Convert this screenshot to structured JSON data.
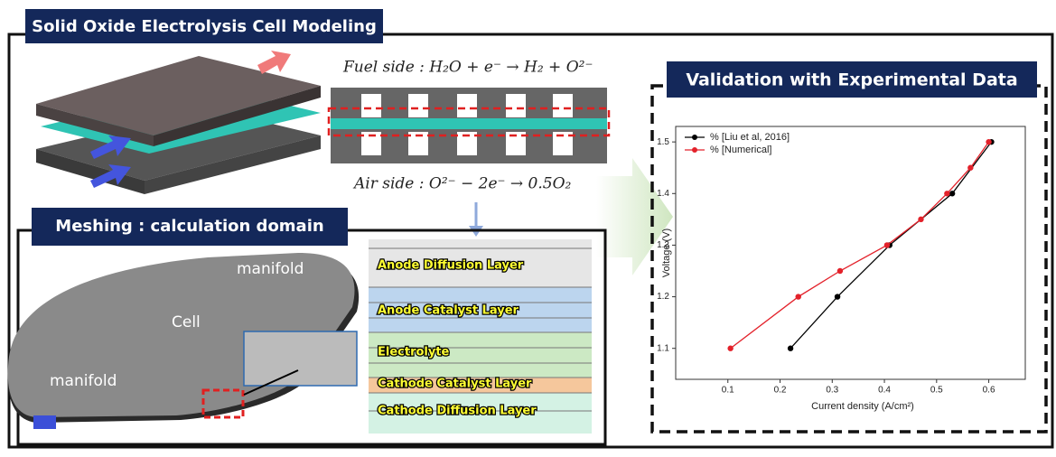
{
  "header": {
    "title": "Solid Oxide Electrolysis Cell Modeling"
  },
  "reactions": {
    "fuel": "Fuel side : H₂O + e⁻ → H₂ + O²⁻",
    "air": "Air side : O²⁻ − 2e⁻ → 0.5O₂"
  },
  "meshing": {
    "title": "Meshing : calculation domain",
    "labels": [
      "manifold",
      "Cell",
      "manifold"
    ]
  },
  "layers": [
    "Anode Diffusion Layer",
    "Anode Catalyst Layer",
    "Electrolyte",
    "Cathode Catalyst Layer",
    "Cathode Diffusion Layer"
  ],
  "validation": {
    "title": "Validation with Experimental Data"
  },
  "chart_data": {
    "type": "line",
    "xlabel": "Current density (A/cm²)",
    "ylabel": "Voltage (V)",
    "xlim": [
      0,
      0.67
    ],
    "ylim": [
      1.04,
      1.53
    ],
    "xticks": [
      0.1,
      0.2,
      0.3,
      0.4,
      0.5,
      0.6
    ],
    "yticks": [
      1.1,
      1.2,
      1.3,
      1.4,
      1.5
    ],
    "legend": "upper left",
    "series": [
      {
        "name": "% [Liu et al, 2016]",
        "color": "#000000",
        "x": [
          0.22,
          0.31,
          0.41,
          0.53,
          0.605
        ],
        "values": [
          1.1,
          1.2,
          1.3,
          1.4,
          1.5
        ]
      },
      {
        "name": "% [Numerical]",
        "color": "#e3212a",
        "x": [
          0.105,
          0.235,
          0.315,
          0.405,
          0.47,
          0.52,
          0.565,
          0.6
        ],
        "values": [
          1.1,
          1.2,
          1.25,
          1.3,
          1.35,
          1.4,
          1.45,
          1.5
        ]
      }
    ]
  }
}
